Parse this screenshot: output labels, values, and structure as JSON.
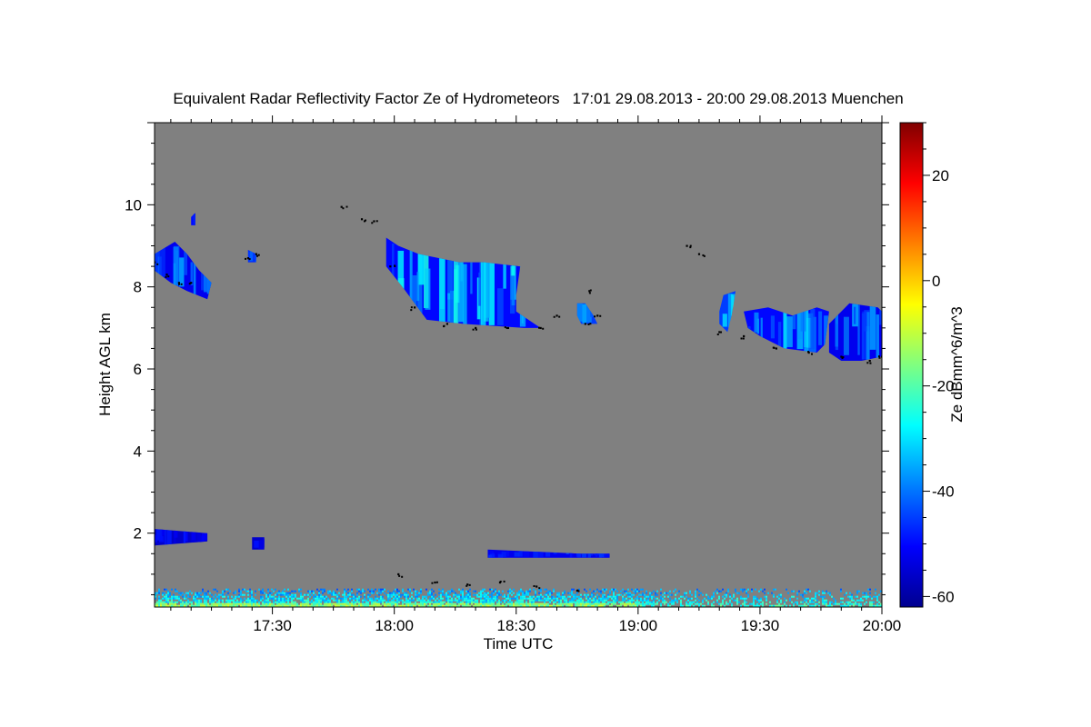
{
  "chart_data": {
    "type": "heatmap",
    "title": "Equivalent Radar Reflectivity Factor Ze of Hydrometeors",
    "time_range": "17:01 29.08.2013 - 20:00 29.08.2013",
    "location": "Muenchen",
    "xlabel": "Time UTC",
    "ylabel": "Height AGL km",
    "xlim": [
      1021,
      1200
    ],
    "ylim": [
      0.2,
      12.0
    ],
    "xticks": [
      {
        "v": 1050,
        "label": "17:30"
      },
      {
        "v": 1080,
        "label": "18:00"
      },
      {
        "v": 1110,
        "label": "18:30"
      },
      {
        "v": 1140,
        "label": "19:00"
      },
      {
        "v": 1170,
        "label": "19:30"
      },
      {
        "v": 1200,
        "label": "20:00"
      }
    ],
    "yticks": [
      {
        "v": 2,
        "label": "2"
      },
      {
        "v": 4,
        "label": "4"
      },
      {
        "v": 6,
        "label": "6"
      },
      {
        "v": 8,
        "label": "8"
      },
      {
        "v": 10,
        "label": "10"
      }
    ],
    "colorbar": {
      "label": "Ze dBmm^6/m^3",
      "range": [
        -62,
        30
      ],
      "ticks": [
        {
          "v": 20,
          "label": "20"
        },
        {
          "v": 0,
          "label": "0"
        },
        {
          "v": -20,
          "label": "-20"
        },
        {
          "v": -40,
          "label": "-40"
        },
        {
          "v": -60,
          "label": "-60"
        }
      ]
    },
    "background_color": "#808080",
    "cloud_regions": [
      {
        "name": "cirrus-1",
        "outline": [
          [
            1021,
            8.8
          ],
          [
            1026,
            9.1
          ],
          [
            1029,
            8.8
          ],
          [
            1032,
            8.4
          ],
          [
            1035,
            8.1
          ],
          [
            1034,
            7.7
          ],
          [
            1029,
            7.9
          ],
          [
            1025,
            8.1
          ],
          [
            1021,
            8.4
          ]
        ],
        "ze_max": -35,
        "ze_min": -52
      },
      {
        "name": "cirrus-1b",
        "outline": [
          [
            1030,
            9.7
          ],
          [
            1031,
            9.8
          ],
          [
            1031,
            9.5
          ],
          [
            1030,
            9.5
          ]
        ],
        "ze_max": -45,
        "ze_min": -50
      },
      {
        "name": "cirrus-2",
        "outline": [
          [
            1044,
            8.9
          ],
          [
            1046,
            8.8
          ],
          [
            1046,
            8.6
          ],
          [
            1044,
            8.6
          ]
        ],
        "ze_max": -40,
        "ze_min": -48
      },
      {
        "name": "cirrus-3",
        "outline": [
          [
            1078,
            9.2
          ],
          [
            1081,
            9.0
          ],
          [
            1086,
            8.8
          ],
          [
            1096,
            8.6
          ],
          [
            1102,
            8.6
          ],
          [
            1111,
            8.5
          ],
          [
            1110,
            7.8
          ],
          [
            1110,
            7.4
          ],
          [
            1116,
            7.0
          ],
          [
            1112,
            7.0
          ],
          [
            1097,
            7.1
          ],
          [
            1088,
            7.2
          ],
          [
            1082,
            8.0
          ],
          [
            1078,
            8.5
          ]
        ],
        "ze_max": -25,
        "ze_min": -50
      },
      {
        "name": "cirrus-4",
        "outline": [
          [
            1125,
            7.6
          ],
          [
            1127,
            7.6
          ],
          [
            1129,
            7.3
          ],
          [
            1130,
            7.1
          ],
          [
            1126,
            7.1
          ],
          [
            1125,
            7.3
          ]
        ],
        "ze_max": -35,
        "ze_min": -45
      },
      {
        "name": "cirrus-5",
        "outline": [
          [
            1161,
            7.8
          ],
          [
            1164,
            7.9
          ],
          [
            1163,
            7.3
          ],
          [
            1162,
            6.9
          ],
          [
            1160,
            7.1
          ],
          [
            1160,
            7.4
          ]
        ],
        "ze_max": -25,
        "ze_min": -45
      },
      {
        "name": "cirrus-6",
        "outline": [
          [
            1166,
            7.4
          ],
          [
            1172,
            7.5
          ],
          [
            1178,
            7.3
          ],
          [
            1184,
            7.5
          ],
          [
            1187,
            7.4
          ],
          [
            1186,
            6.6
          ],
          [
            1184,
            6.4
          ],
          [
            1176,
            6.5
          ],
          [
            1170,
            6.8
          ],
          [
            1167,
            7.0
          ]
        ],
        "ze_max": -27,
        "ze_min": -50
      },
      {
        "name": "cirrus-7",
        "outline": [
          [
            1187,
            7.1
          ],
          [
            1192,
            7.6
          ],
          [
            1199,
            7.5
          ],
          [
            1200,
            7.4
          ],
          [
            1200,
            6.3
          ],
          [
            1195,
            6.2
          ],
          [
            1190,
            6.2
          ],
          [
            1187,
            6.4
          ]
        ],
        "ze_max": -32,
        "ze_min": -52
      },
      {
        "name": "low-cloud-1",
        "outline": [
          [
            1021,
            2.1
          ],
          [
            1034,
            2.0
          ],
          [
            1034,
            1.8
          ],
          [
            1021,
            1.7
          ]
        ],
        "ze_max": -48,
        "ze_min": -55
      },
      {
        "name": "low-cloud-2",
        "outline": [
          [
            1045,
            1.9
          ],
          [
            1048,
            1.9
          ],
          [
            1048,
            1.6
          ],
          [
            1045,
            1.6
          ]
        ],
        "ze_max": -48,
        "ze_min": -55
      },
      {
        "name": "low-cloud-3",
        "outline": [
          [
            1103,
            1.6
          ],
          [
            1126,
            1.5
          ],
          [
            1133,
            1.5
          ],
          [
            1133,
            1.4
          ],
          [
            1103,
            1.4
          ]
        ],
        "ze_max": -44,
        "ze_min": -52
      }
    ],
    "surface_clutter": {
      "h_min": 0.2,
      "h_max": 0.65,
      "ze_max": -15,
      "ze_min": -45
    },
    "cloud_base_points": [
      [
        1021,
        8.6
      ],
      [
        1024,
        8.3
      ],
      [
        1027,
        8.1
      ],
      [
        1030,
        8.1
      ],
      [
        1044,
        8.7
      ],
      [
        1046,
        8.8
      ],
      [
        1067,
        9.95
      ],
      [
        1072,
        9.65
      ],
      [
        1075,
        9.6
      ],
      [
        1079,
        8.5
      ],
      [
        1085,
        7.5
      ],
      [
        1093,
        7.1
      ],
      [
        1100,
        7.0
      ],
      [
        1108,
        7.0
      ],
      [
        1116,
        7.0
      ],
      [
        1120,
        7.3
      ],
      [
        1127,
        7.1
      ],
      [
        1130,
        7.3
      ],
      [
        1128,
        7.9
      ],
      [
        1152,
        9.0
      ],
      [
        1155,
        8.8
      ],
      [
        1160,
        6.9
      ],
      [
        1166,
        6.8
      ],
      [
        1174,
        6.5
      ],
      [
        1182,
        6.4
      ],
      [
        1190,
        6.3
      ],
      [
        1197,
        6.2
      ],
      [
        1200,
        6.3
      ],
      [
        1081,
        1.0
      ],
      [
        1090,
        0.8
      ],
      [
        1098,
        0.75
      ],
      [
        1106,
        0.8
      ],
      [
        1115,
        0.7
      ],
      [
        1125,
        0.6
      ]
    ]
  }
}
